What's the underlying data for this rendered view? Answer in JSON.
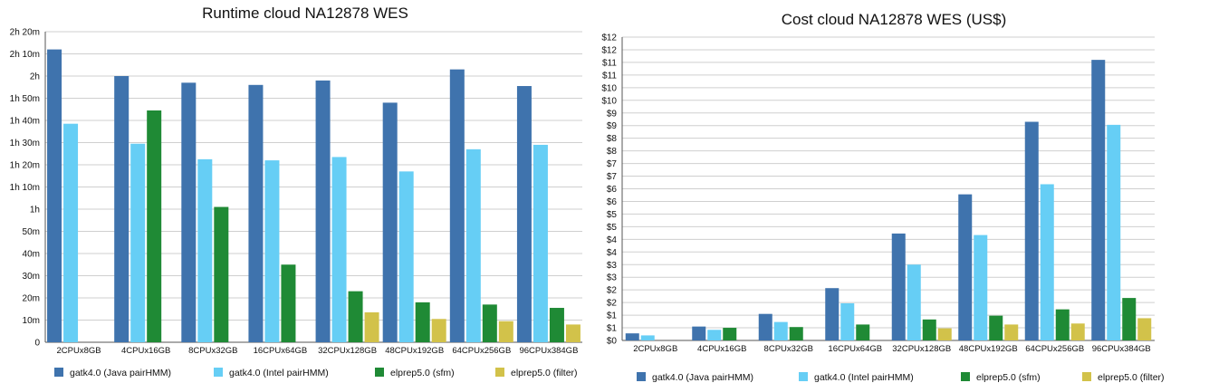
{
  "chart_data": [
    {
      "type": "bar",
      "title": "Runtime cloud NA12878 WES",
      "xlabel": "",
      "ylabel": "",
      "y_unit": "minutes",
      "ylim": [
        0,
        140
      ],
      "yticks": [
        0,
        10,
        20,
        30,
        40,
        50,
        60,
        70,
        80,
        90,
        100,
        110,
        120,
        130,
        140
      ],
      "ytick_labels": [
        "0",
        "10m",
        "20m",
        "30m",
        "40m",
        "50m",
        "1h",
        "1h 10m",
        "1h 20m",
        "1h 30m",
        "1h 40m",
        "1h 50m",
        "2h",
        "2h 10m",
        "2h 20m"
      ],
      "categories": [
        "2CPUx8GB",
        "4CPUx16GB",
        "8CPUx32GB",
        "16CPUx64GB",
        "32CPUx128GB",
        "48CPUx192GB",
        "64CPUx256GB",
        "96CPUx384GB"
      ],
      "grid": true,
      "legend_position": "bottom",
      "series": [
        {
          "name": "gatk4.0 (Java pairHMM)",
          "color": "#3f73ad",
          "values": [
            132,
            120,
            117,
            116,
            118,
            108,
            123,
            115.5
          ]
        },
        {
          "name": "gatk4.0 (Intel pairHMM)",
          "color": "#66cef5",
          "values": [
            98.5,
            89.5,
            82.5,
            82,
            83.5,
            77,
            87,
            89
          ]
        },
        {
          "name": "elprep5.0 (sfm)",
          "color": "#1f8a35",
          "values": [
            null,
            104.5,
            61,
            35,
            23,
            18,
            17,
            15.5
          ]
        },
        {
          "name": "elprep5.0 (filter)",
          "color": "#d2c24a",
          "values": [
            null,
            null,
            null,
            null,
            13.5,
            10.5,
            9.5,
            8
          ]
        }
      ]
    },
    {
      "type": "bar",
      "title": "Cost cloud NA12878 WES (US$)",
      "xlabel": "",
      "ylabel": "",
      "ylim": [
        0,
        12
      ],
      "yticks": [
        0,
        0.5,
        1,
        1.5,
        2,
        2.5,
        3,
        3.5,
        4,
        4.5,
        5,
        5.5,
        6,
        6.5,
        7,
        7.5,
        8,
        8.5,
        9,
        9.5,
        10,
        10.5,
        11,
        11.5,
        12
      ],
      "ytick_labels": [
        "$0",
        "$1",
        "$1",
        "$2",
        "$2",
        "$3",
        "$3",
        "$4",
        "$4",
        "$5",
        "$5",
        "$6",
        "$6",
        "$7",
        "$7",
        "$8",
        "$8",
        "$9",
        "$9",
        "$10",
        "$10",
        "$11",
        "$11",
        "$12",
        "$12"
      ],
      "categories": [
        "2CPUx8GB",
        "4CPUx16GB",
        "8CPUx32GB",
        "16CPUx64GB",
        "32CPUx128GB",
        "48CPUx192GB",
        "64CPUx256GB",
        "96CPUx384GB"
      ],
      "grid": true,
      "legend_position": "bottom",
      "series": [
        {
          "name": "gatk4.0 (Java pairHMM)",
          "color": "#3f73ad",
          "values": [
            0.28,
            0.55,
            1.05,
            2.07,
            4.23,
            5.78,
            8.65,
            11.1
          ]
        },
        {
          "name": "gatk4.0 (Intel pairHMM)",
          "color": "#66cef5",
          "values": [
            0.2,
            0.42,
            0.73,
            1.47,
            3.0,
            4.17,
            6.18,
            8.53
          ]
        },
        {
          "name": "elprep5.0 (sfm)",
          "color": "#1f8a35",
          "values": [
            null,
            0.5,
            0.53,
            0.63,
            0.83,
            0.98,
            1.23,
            1.68
          ]
        },
        {
          "name": "elprep5.0 (filter)",
          "color": "#d2c24a",
          "values": [
            null,
            null,
            null,
            null,
            0.48,
            0.63,
            0.67,
            0.88
          ]
        }
      ]
    }
  ]
}
